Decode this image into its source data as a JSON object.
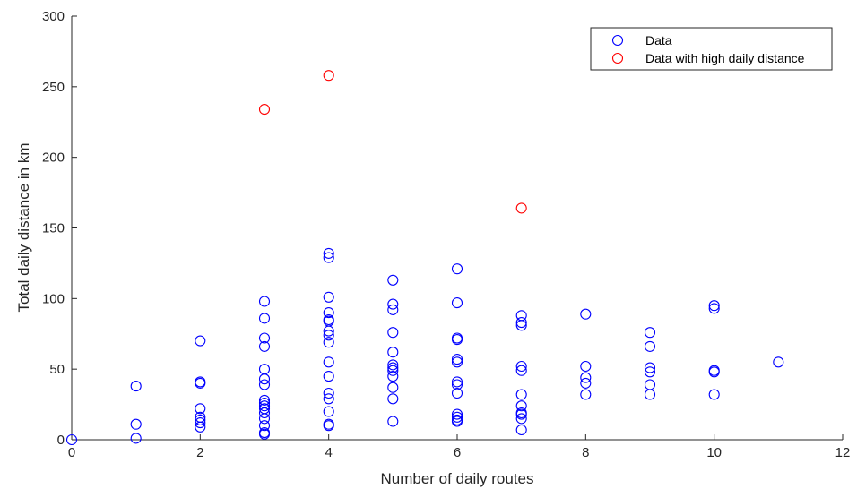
{
  "chart_data": {
    "type": "scatter",
    "xlabel": "Number of daily routes",
    "ylabel": "Total daily distance in km",
    "xlim": [
      0,
      12
    ],
    "ylim": [
      0,
      300
    ],
    "x_ticks": [
      0,
      2,
      4,
      6,
      8,
      10,
      12
    ],
    "y_ticks": [
      0,
      50,
      100,
      150,
      200,
      250,
      300
    ],
    "grid": false,
    "legend_position": "top-right",
    "series": [
      {
        "name": "Data",
        "color": "#0000ff",
        "marker": "circle-open",
        "points": [
          [
            0,
            0
          ],
          [
            1,
            38
          ],
          [
            1,
            11
          ],
          [
            1,
            1
          ],
          [
            2,
            70
          ],
          [
            2,
            41
          ],
          [
            2,
            40
          ],
          [
            2,
            22
          ],
          [
            2,
            16
          ],
          [
            2,
            14
          ],
          [
            2,
            12
          ],
          [
            2,
            9
          ],
          [
            3,
            98
          ],
          [
            3,
            86
          ],
          [
            3,
            72
          ],
          [
            3,
            66
          ],
          [
            3,
            50
          ],
          [
            3,
            43
          ],
          [
            3,
            39
          ],
          [
            3,
            28
          ],
          [
            3,
            26
          ],
          [
            3,
            24
          ],
          [
            3,
            22
          ],
          [
            3,
            19
          ],
          [
            3,
            15
          ],
          [
            3,
            10
          ],
          [
            3,
            5
          ],
          [
            3,
            4
          ],
          [
            4,
            132
          ],
          [
            4,
            129
          ],
          [
            4,
            101
          ],
          [
            4,
            90
          ],
          [
            4,
            85
          ],
          [
            4,
            84
          ],
          [
            4,
            77
          ],
          [
            4,
            74
          ],
          [
            4,
            69
          ],
          [
            4,
            55
          ],
          [
            4,
            45
          ],
          [
            4,
            33
          ],
          [
            4,
            29
          ],
          [
            4,
            20
          ],
          [
            4,
            11
          ],
          [
            4,
            10
          ],
          [
            5,
            113
          ],
          [
            5,
            96
          ],
          [
            5,
            92
          ],
          [
            5,
            76
          ],
          [
            5,
            62
          ],
          [
            5,
            53
          ],
          [
            5,
            51
          ],
          [
            5,
            49
          ],
          [
            5,
            45
          ],
          [
            5,
            37
          ],
          [
            5,
            29
          ],
          [
            5,
            13
          ],
          [
            6,
            121
          ],
          [
            6,
            97
          ],
          [
            6,
            72
          ],
          [
            6,
            71
          ],
          [
            6,
            57
          ],
          [
            6,
            55
          ],
          [
            6,
            41
          ],
          [
            6,
            39
          ],
          [
            6,
            33
          ],
          [
            6,
            18
          ],
          [
            6,
            16
          ],
          [
            6,
            14
          ],
          [
            6,
            13
          ],
          [
            7,
            88
          ],
          [
            7,
            83
          ],
          [
            7,
            81
          ],
          [
            7,
            52
          ],
          [
            7,
            49
          ],
          [
            7,
            32
          ],
          [
            7,
            24
          ],
          [
            7,
            19
          ],
          [
            7,
            18
          ],
          [
            7,
            15
          ],
          [
            7,
            7
          ],
          [
            8,
            89
          ],
          [
            8,
            52
          ],
          [
            8,
            44
          ],
          [
            8,
            40
          ],
          [
            8,
            32
          ],
          [
            9,
            76
          ],
          [
            9,
            66
          ],
          [
            9,
            51
          ],
          [
            9,
            48
          ],
          [
            9,
            39
          ],
          [
            9,
            32
          ],
          [
            10,
            95
          ],
          [
            10,
            93
          ],
          [
            10,
            49
          ],
          [
            10,
            48
          ],
          [
            10,
            32
          ],
          [
            11,
            55
          ]
        ]
      },
      {
        "name": "Data with high daily distance",
        "color": "#ff0000",
        "marker": "circle-open",
        "points": [
          [
            3,
            234
          ],
          [
            4,
            258
          ],
          [
            7,
            164
          ]
        ]
      }
    ]
  }
}
